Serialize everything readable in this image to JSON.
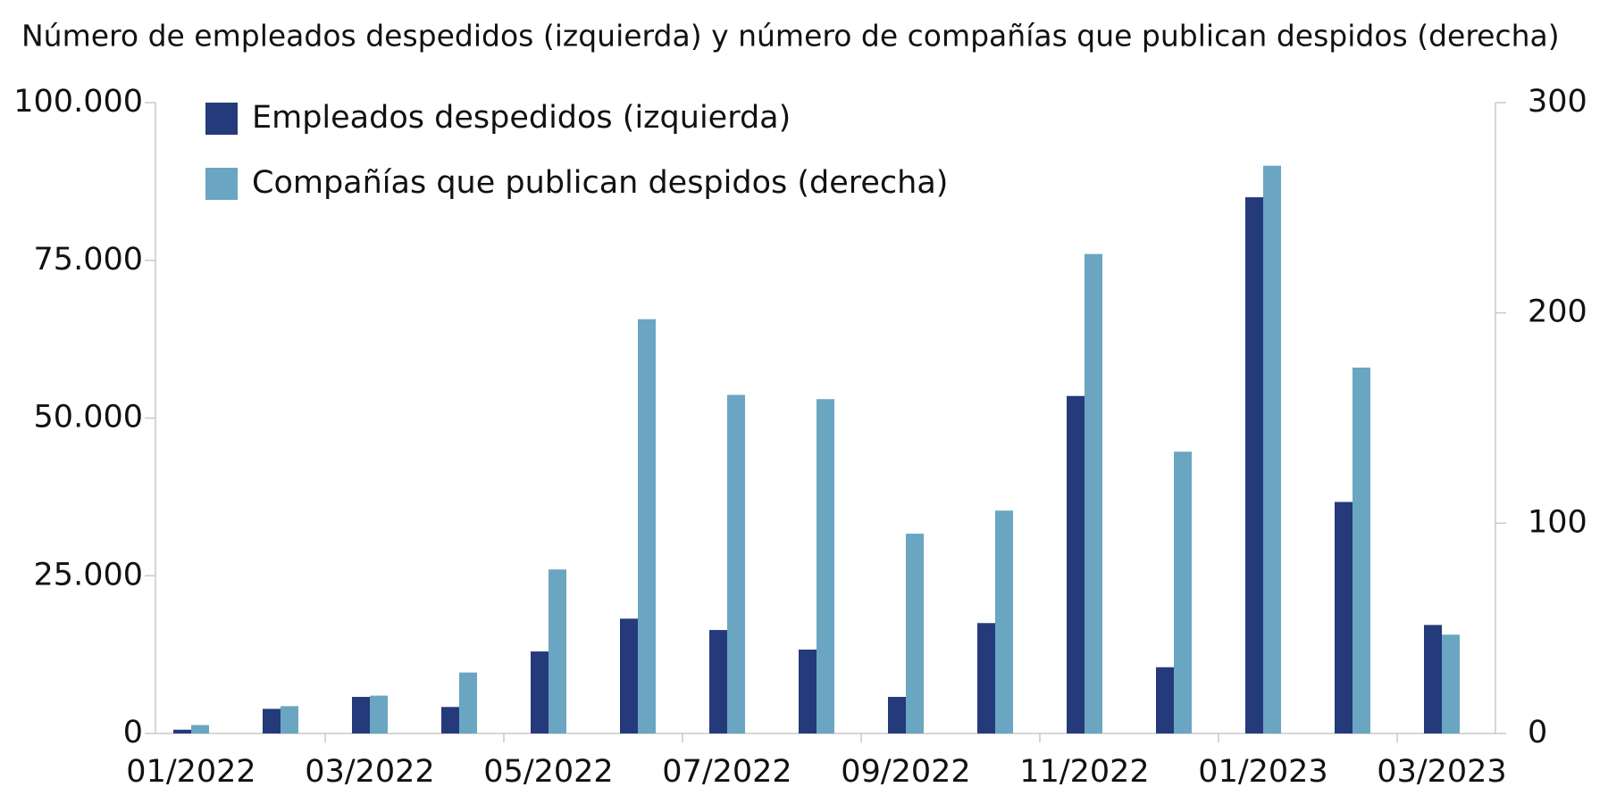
{
  "chart_data": {
    "type": "bar",
    "title": "Número de empleados despedidos (izquierda) y número de compañías que publican despidos (derecha)",
    "categories": [
      "01/2022",
      null,
      "03/2022",
      null,
      "05/2022",
      null,
      "07/2022",
      null,
      "09/2022",
      null,
      "11/2022",
      null,
      "01/2023",
      null,
      "03/2023"
    ],
    "series": [
      {
        "name": "Empleados despedidos (izquierda)",
        "color": "#253a7a",
        "axis": "y",
        "values": [
          600,
          3900,
          5800,
          4200,
          13000,
          18200,
          16400,
          13300,
          5800,
          17500,
          53500,
          10500,
          85000,
          36700,
          17200
        ]
      },
      {
        "name": "Compañías que publican despidos (derecha)",
        "color": "#6aa6c1",
        "axis": "y2",
        "values": [
          4,
          13,
          18,
          29,
          78,
          197,
          161,
          159,
          95,
          106,
          228,
          134,
          270,
          174,
          47
        ]
      }
    ],
    "ylim": [
      0,
      100000
    ],
    "yticks": [
      0,
      {
        "value": 25000,
        "label": "25.000"
      },
      {
        "value": 50000,
        "label": "50.000"
      },
      {
        "value": 75000,
        "label": "75.000"
      },
      {
        "value": 100000,
        "label": "100.000"
      }
    ],
    "y2lim": [
      0,
      300
    ],
    "y2ticks": [
      0,
      100,
      200,
      300
    ],
    "grid": false,
    "legend": "top-left"
  }
}
